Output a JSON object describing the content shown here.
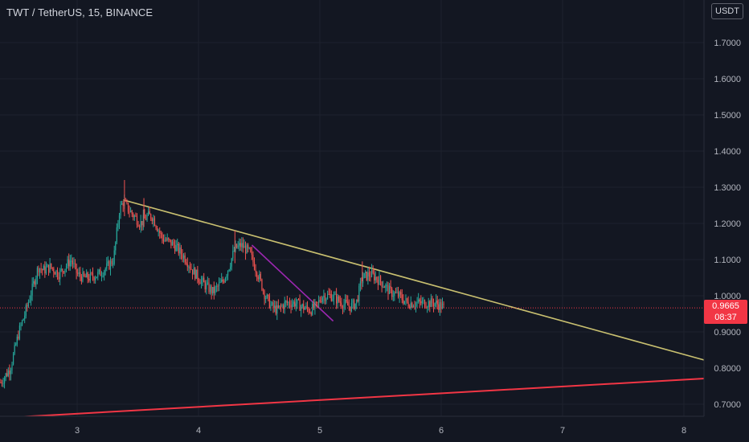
{
  "header": {
    "title": "TWT / TetherUS, 15, BINANCE"
  },
  "price_scale": {
    "currency_label": "USDT",
    "current_price": "0.9665",
    "countdown": "08:37"
  },
  "colors": {
    "background": "#131722",
    "grid": "#1e222d",
    "up_candle": "#26a69a",
    "down_candle": "#ef5350",
    "upper_trendline": "#c9c070",
    "lower_trendline": "#f23645",
    "short_trendline": "#9c27b0",
    "price_tag": "#f23645",
    "text": "#b2b5be"
  },
  "chart_data": {
    "type": "candlestick",
    "x_ticks": [
      "3",
      "4",
      "5",
      "6",
      "7",
      "8"
    ],
    "y_ticks": [
      "1.7000",
      "1.6000",
      "1.5000",
      "1.4000",
      "1.3000",
      "1.2000",
      "1.1000",
      "1.0000",
      "0.9000",
      "0.8000",
      "0.7000"
    ],
    "ylim": [
      0.66,
      1.79
    ],
    "xlim": [
      2.37,
      8.17
    ],
    "grid": true,
    "current_price": 0.9665,
    "price_path": [
      [
        2.37,
        0.76
      ],
      [
        2.45,
        0.8
      ],
      [
        2.52,
        0.9
      ],
      [
        2.57,
        0.95
      ],
      [
        2.63,
        1.02
      ],
      [
        2.68,
        1.08
      ],
      [
        2.72,
        1.07
      ],
      [
        2.78,
        1.08
      ],
      [
        2.85,
        1.06
      ],
      [
        2.9,
        1.08
      ],
      [
        2.95,
        1.1
      ],
      [
        3.0,
        1.06
      ],
      [
        3.05,
        1.05
      ],
      [
        3.1,
        1.05
      ],
      [
        3.18,
        1.06
      ],
      [
        3.25,
        1.08
      ],
      [
        3.3,
        1.1
      ],
      [
        3.35,
        1.24
      ],
      [
        3.38,
        1.26
      ],
      [
        3.42,
        1.24
      ],
      [
        3.47,
        1.22
      ],
      [
        3.52,
        1.2
      ],
      [
        3.58,
        1.22
      ],
      [
        3.62,
        1.22
      ],
      [
        3.7,
        1.16
      ],
      [
        3.8,
        1.14
      ],
      [
        3.9,
        1.1
      ],
      [
        3.95,
        1.07
      ],
      [
        4.05,
        1.03
      ],
      [
        4.12,
        1.01
      ],
      [
        4.2,
        1.04
      ],
      [
        4.25,
        1.08
      ],
      [
        4.3,
        1.13
      ],
      [
        4.35,
        1.14
      ],
      [
        4.42,
        1.12
      ],
      [
        4.5,
        1.05
      ],
      [
        4.55,
        1.0
      ],
      [
        4.6,
        0.97
      ],
      [
        4.65,
        0.96
      ],
      [
        4.72,
        0.98
      ],
      [
        4.8,
        0.98
      ],
      [
        4.85,
        0.97
      ],
      [
        4.92,
        0.96
      ],
      [
        4.97,
        0.97
      ],
      [
        5.02,
        1.0
      ],
      [
        5.1,
        1.0
      ],
      [
        5.18,
        0.98
      ],
      [
        5.25,
        0.97
      ],
      [
        5.3,
        0.98
      ],
      [
        5.35,
        1.05
      ],
      [
        5.42,
        1.06
      ],
      [
        5.5,
        1.04
      ],
      [
        5.58,
        1.01
      ],
      [
        5.65,
        1.0
      ],
      [
        5.72,
        0.98
      ],
      [
        5.8,
        0.98
      ],
      [
        5.88,
        0.98
      ],
      [
        5.95,
        0.98
      ],
      [
        6.03,
        0.9665
      ]
    ],
    "trendlines": [
      {
        "name": "",
        "color": "upper",
        "from": [
          3.38,
          1.265
        ],
        "to": [
          8.17,
          0.822
        ]
      },
      {
        "name": "",
        "color": "lower",
        "from": [
          2.37,
          0.662
        ],
        "to": [
          8.17,
          0.771
        ]
      },
      {
        "name": "",
        "color": "short",
        "from": [
          4.44,
          1.14
        ],
        "to": [
          5.11,
          0.93
        ]
      }
    ]
  }
}
